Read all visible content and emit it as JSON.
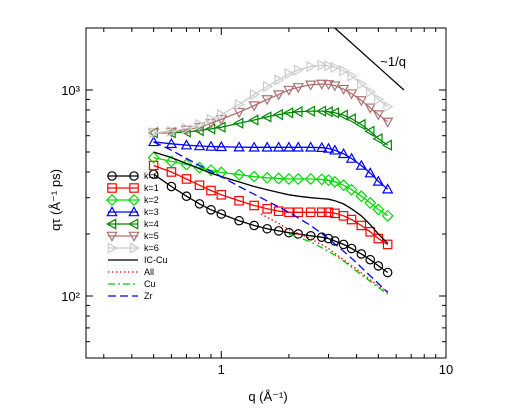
{
  "chart_data": {
    "type": "line",
    "title": "",
    "xlabel": "q (Å⁻¹)",
    "ylabel": "qτ (Å⁻¹ ps)",
    "xscale": "log",
    "yscale": "log",
    "xlim": [
      0.25,
      10
    ],
    "ylim": [
      50,
      2000
    ],
    "x_ticks": [
      "1",
      "10"
    ],
    "y_ticks": [
      "10²",
      "10³"
    ],
    "grid": false,
    "legend_position": "center-left",
    "annotations": [
      {
        "text": "~1/q",
        "kind": "slope-line",
        "from": [
          3.2,
          2000
        ],
        "to": [
          6.5,
          1000
        ]
      }
    ],
    "series": [
      {
        "name": "k=0",
        "color": "#000000",
        "marker": "circle",
        "line": "solid",
        "x": [
          0.5,
          0.6,
          0.7,
          0.8,
          0.9,
          1.0,
          1.2,
          1.4,
          1.6,
          1.8,
          2.0,
          2.2,
          2.5,
          2.8,
          3.0,
          3.2,
          3.5,
          3.8,
          4.2,
          4.6,
          5.0,
          5.5
        ],
        "y": [
          390,
          340,
          305,
          280,
          262,
          250,
          232,
          220,
          212,
          207,
          203,
          200,
          196,
          193,
          190,
          185,
          178,
          170,
          160,
          150,
          140,
          130
        ]
      },
      {
        "name": "k=1",
        "color": "#ff0000",
        "marker": "square",
        "line": "solid",
        "x": [
          0.5,
          0.6,
          0.7,
          0.8,
          0.9,
          1.0,
          1.2,
          1.4,
          1.6,
          1.8,
          2.0,
          2.2,
          2.5,
          2.8,
          3.0,
          3.2,
          3.5,
          3.8,
          4.2,
          4.6,
          5.0,
          5.5
        ],
        "y": [
          430,
          400,
          370,
          345,
          325,
          310,
          290,
          275,
          265,
          258,
          255,
          255,
          255,
          255,
          255,
          252,
          245,
          235,
          220,
          205,
          190,
          178
        ]
      },
      {
        "name": "k=2",
        "color": "#00dd00",
        "marker": "diamond",
        "line": "solid",
        "x": [
          0.5,
          0.6,
          0.7,
          0.8,
          0.9,
          1.0,
          1.2,
          1.4,
          1.6,
          1.8,
          2.0,
          2.2,
          2.5,
          2.8,
          3.0,
          3.2,
          3.5,
          3.8,
          4.2,
          4.6,
          5.0,
          5.5
        ],
        "y": [
          470,
          450,
          435,
          420,
          408,
          398,
          388,
          380,
          375,
          372,
          370,
          370,
          370,
          368,
          365,
          358,
          345,
          328,
          305,
          283,
          263,
          245
        ]
      },
      {
        "name": "k=3",
        "color": "#0000ff",
        "marker": "triangle-up",
        "line": "solid",
        "x": [
          0.5,
          0.6,
          0.7,
          0.8,
          0.9,
          1.0,
          1.2,
          1.4,
          1.6,
          1.8,
          2.0,
          2.2,
          2.5,
          2.8,
          3.0,
          3.2,
          3.5,
          3.8,
          4.2,
          4.6,
          5.0,
          5.5
        ],
        "y": [
          560,
          548,
          540,
          535,
          532,
          530,
          528,
          527,
          527,
          527,
          527,
          527,
          527,
          525,
          520,
          510,
          490,
          465,
          430,
          395,
          360,
          330
        ]
      },
      {
        "name": "k=4",
        "color": "#008800",
        "marker": "triangle-left",
        "line": "solid",
        "x": [
          0.5,
          0.6,
          0.7,
          0.8,
          0.9,
          1.0,
          1.2,
          1.4,
          1.6,
          1.8,
          2.0,
          2.2,
          2.5,
          2.8,
          3.0,
          3.2,
          3.5,
          3.8,
          4.2,
          4.6,
          5.0,
          5.5
        ],
        "y": [
          620,
          620,
          625,
          635,
          648,
          660,
          690,
          715,
          740,
          760,
          775,
          785,
          790,
          790,
          785,
          775,
          755,
          725,
          680,
          630,
          580,
          540
        ]
      },
      {
        "name": "k=5",
        "color": "#b07070",
        "marker": "triangle-down",
        "line": "solid",
        "x": [
          0.5,
          0.6,
          0.7,
          0.8,
          0.9,
          1.0,
          1.2,
          1.4,
          1.6,
          1.8,
          2.0,
          2.2,
          2.5,
          2.8,
          3.0,
          3.2,
          3.5,
          3.8,
          4.2,
          4.6,
          5.0,
          5.5
        ],
        "y": [
          620,
          625,
          640,
          660,
          690,
          720,
          780,
          840,
          900,
          950,
          1000,
          1030,
          1060,
          1070,
          1065,
          1050,
          1010,
          960,
          890,
          820,
          760,
          700
        ]
      },
      {
        "name": "k=6",
        "color": "#cccccc",
        "marker": "triangle-right",
        "line": "solid",
        "x": [
          0.5,
          0.6,
          0.7,
          0.8,
          0.9,
          1.0,
          1.2,
          1.4,
          1.6,
          1.8,
          2.0,
          2.2,
          2.5,
          2.8,
          3.0,
          3.2,
          3.5,
          3.8,
          4.2,
          4.6,
          5.0,
          5.5
        ],
        "y": [
          620,
          630,
          650,
          680,
          720,
          760,
          850,
          950,
          1040,
          1120,
          1200,
          1250,
          1300,
          1320,
          1310,
          1290,
          1240,
          1170,
          1070,
          980,
          900,
          830
        ]
      },
      {
        "name": "IC-Cu",
        "color": "#000000",
        "marker": "none",
        "line": "solid",
        "x": [
          0.5,
          0.6,
          0.7,
          0.8,
          0.9,
          1.0,
          1.2,
          1.4,
          1.6,
          1.8,
          2.0,
          2.2,
          2.5,
          2.8,
          3.0,
          3.2,
          3.5,
          3.8,
          4.2,
          4.6,
          5.0,
          5.5
        ],
        "y": [
          500,
          470,
          440,
          415,
          395,
          380,
          358,
          340,
          328,
          318,
          310,
          305,
          300,
          297,
          295,
          290,
          280,
          265,
          245,
          222,
          200,
          180
        ]
      },
      {
        "name": "All",
        "color": "#ff0000",
        "marker": "none",
        "line": "dotted",
        "x": [
          1.5,
          1.8,
          2.0,
          2.5,
          3.0,
          3.5,
          4.0,
          4.5,
          5.0,
          5.5
        ],
        "y": [
          250,
          225,
          210,
          190,
          170,
          150,
          135,
          122,
          112,
          105
        ]
      },
      {
        "name": "Cu",
        "color": "#00cc00",
        "marker": "none",
        "line": "dashdot",
        "x": [
          2.0,
          2.5,
          3.0,
          3.5,
          4.0,
          4.5,
          5.0,
          5.5
        ],
        "y": [
          200,
          183,
          165,
          148,
          132,
          120,
          110,
          102
        ]
      },
      {
        "name": "Zr",
        "color": "#0000ff",
        "marker": "none",
        "line": "dashed",
        "x": [
          0.5,
          0.6,
          0.7,
          0.8,
          1.0,
          1.2,
          1.5,
          2.0,
          2.5,
          3.0,
          3.5,
          4.0,
          4.5,
          5.0,
          5.5
        ],
        "y": [
          560,
          510,
          465,
          430,
          380,
          340,
          300,
          255,
          220,
          190,
          165,
          145,
          128,
          115,
          104
        ]
      }
    ]
  }
}
